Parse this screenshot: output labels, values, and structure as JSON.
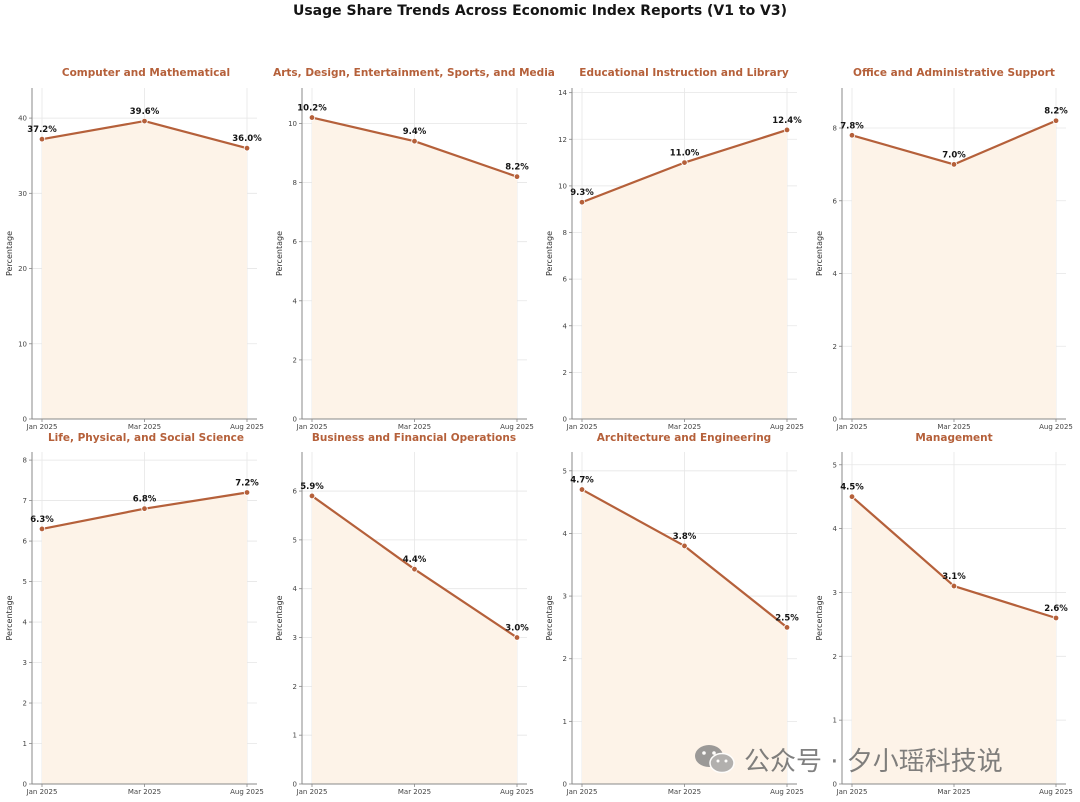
{
  "title": "Usage Share Trends Across Economic Index Reports (V1 to V3)",
  "watermark": "公众号 · 夕小瑶科技说",
  "colors": {
    "line": "#b5603a",
    "fill": "#fdf3e8",
    "title": "#b5603a",
    "grid": "#e6e6e6"
  },
  "chart_data": [
    {
      "type": "line",
      "title": "Computer and Mathematical",
      "categories": [
        "Jan 2025",
        "Mar 2025",
        "Aug 2025"
      ],
      "values": [
        37.2,
        39.6,
        36.0
      ],
      "labels": [
        "37.2%",
        "39.6%",
        "36.0%"
      ],
      "ylabel": "Percentage",
      "ylim": [
        0,
        44
      ],
      "yticks": [
        0,
        10,
        20,
        30,
        40
      ],
      "grid": true
    },
    {
      "type": "line",
      "title": "Arts, Design, Entertainment, Sports, and Media",
      "categories": [
        "Jan 2025",
        "Mar 2025",
        "Aug 2025"
      ],
      "values": [
        10.2,
        9.4,
        8.2
      ],
      "labels": [
        "10.2%",
        "9.4%",
        "8.2%"
      ],
      "ylabel": "Percentage",
      "ylim": [
        0,
        11.2
      ],
      "yticks": [
        0,
        2,
        4,
        6,
        8,
        10
      ],
      "grid": true
    },
    {
      "type": "line",
      "title": "Educational Instruction and Library",
      "categories": [
        "Jan 2025",
        "Mar 2025",
        "Aug 2025"
      ],
      "values": [
        9.3,
        11.0,
        12.4
      ],
      "labels": [
        "9.3%",
        "11.0%",
        "12.4%"
      ],
      "ylabel": "Percentage",
      "ylim": [
        0,
        14.2
      ],
      "yticks": [
        0,
        2,
        4,
        6,
        8,
        10,
        12,
        14
      ],
      "grid": true
    },
    {
      "type": "line",
      "title": "Office and Administrative Support",
      "categories": [
        "Jan 2025",
        "Mar 2025",
        "Aug 2025"
      ],
      "values": [
        7.8,
        7.0,
        8.2
      ],
      "labels": [
        "7.8%",
        "7.0%",
        "8.2%"
      ],
      "ylabel": "Percentage",
      "ylim": [
        0,
        9.1
      ],
      "yticks": [
        0,
        2,
        4,
        6,
        8
      ],
      "grid": true
    },
    {
      "type": "line",
      "title": "Life, Physical, and Social Science",
      "categories": [
        "Jan 2025",
        "Mar 2025",
        "Aug 2025"
      ],
      "values": [
        6.3,
        6.8,
        7.2
      ],
      "labels": [
        "6.3%",
        "6.8%",
        "7.2%"
      ],
      "ylabel": "Percentage",
      "ylim": [
        0,
        8.2
      ],
      "yticks": [
        0,
        1,
        2,
        3,
        4,
        5,
        6,
        7,
        8
      ],
      "grid": true
    },
    {
      "type": "line",
      "title": "Business and Financial Operations",
      "categories": [
        "Jan 2025",
        "Mar 2025",
        "Aug 2025"
      ],
      "values": [
        5.9,
        4.4,
        3.0
      ],
      "labels": [
        "5.9%",
        "4.4%",
        "3.0%"
      ],
      "ylabel": "Percentage",
      "ylim": [
        0,
        6.8
      ],
      "yticks": [
        0,
        1,
        2,
        3,
        4,
        5,
        6
      ],
      "grid": true
    },
    {
      "type": "line",
      "title": "Architecture and Engineering",
      "categories": [
        "Jan 2025",
        "Mar 2025",
        "Aug 2025"
      ],
      "values": [
        4.7,
        3.8,
        2.5
      ],
      "labels": [
        "4.7%",
        "3.8%",
        "2.5%"
      ],
      "ylabel": "Percentage",
      "ylim": [
        0,
        5.3
      ],
      "yticks": [
        0,
        1,
        2,
        3,
        4,
        5
      ],
      "grid": true
    },
    {
      "type": "line",
      "title": "Management",
      "categories": [
        "Jan 2025",
        "Mar 2025",
        "Aug 2025"
      ],
      "values": [
        4.5,
        3.1,
        2.6
      ],
      "labels": [
        "4.5%",
        "3.1%",
        "2.6%"
      ],
      "ylabel": "Percentage",
      "ylim": [
        0,
        5.2
      ],
      "yticks": [
        0,
        1,
        2,
        3,
        4,
        5
      ],
      "grid": true
    }
  ]
}
